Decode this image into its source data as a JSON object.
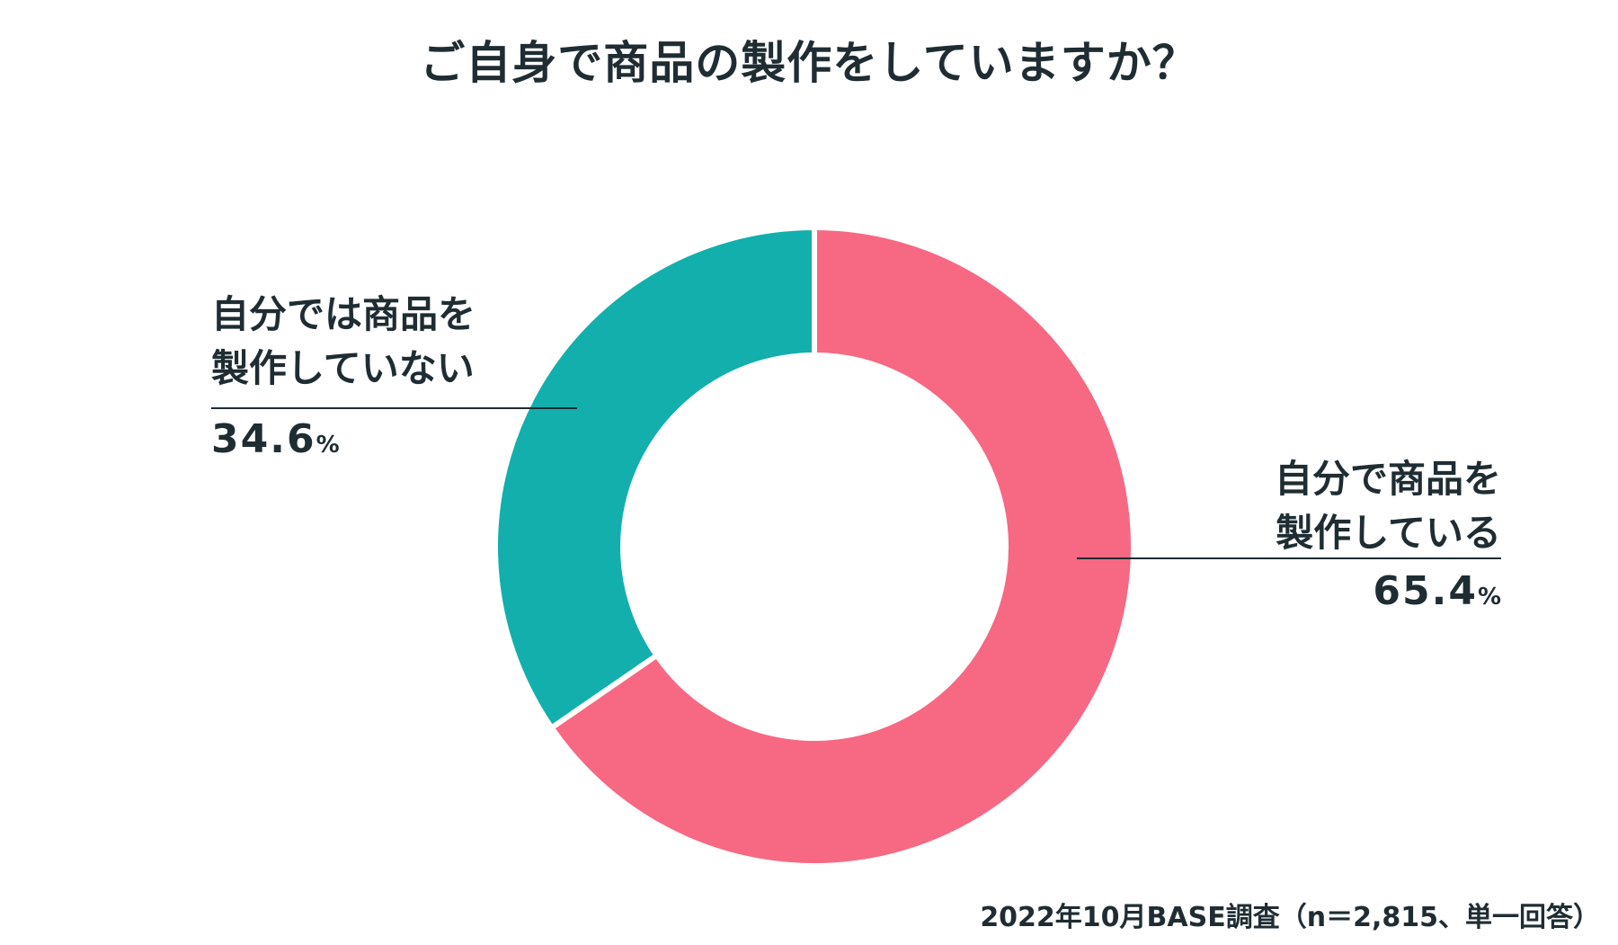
{
  "chart_data": {
    "type": "pie",
    "variant": "donut",
    "title": "ご自身で商品の製作をしていますか？",
    "slices": [
      {
        "label_lines": [
          "自分で商品を",
          "製作している"
        ],
        "value": 65.4,
        "value_text": "65.4",
        "unit": "%",
        "color": "#f76883"
      },
      {
        "label_lines": [
          "自分では商品を",
          "製作していない"
        ],
        "value": 34.6,
        "value_text": "34.6",
        "unit": "%",
        "color": "#12afad"
      }
    ],
    "start": "top",
    "direction": "clockwise",
    "source": "2022年10月BASE調査（n＝2,815、単一回答）"
  }
}
